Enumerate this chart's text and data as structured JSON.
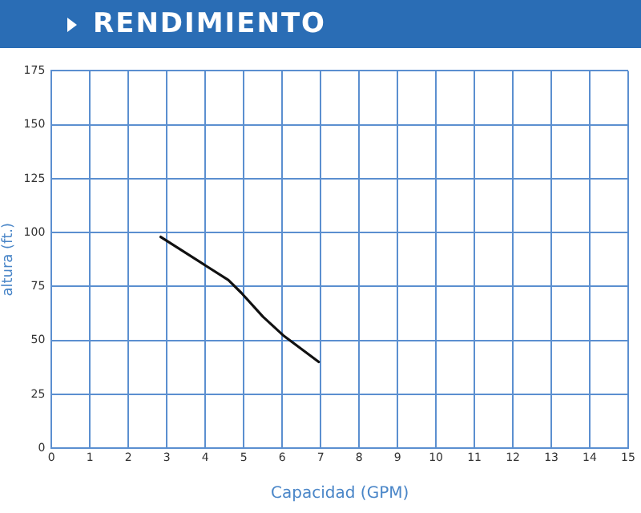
{
  "chart_data": {
    "type": "line",
    "title": "RENDIMIENTO",
    "xlabel": "Capacidad (GPM)",
    "ylabel": "altura (ft.)",
    "series": [
      {
        "color": "#111111",
        "x": [
          2.84,
          3.98,
          4.6,
          4.94,
          5.5,
          6.05,
          6.95
        ],
        "values": [
          98,
          85,
          78,
          72,
          61,
          52,
          40
        ]
      }
    ],
    "xlim": [
      0,
      15
    ],
    "xticks": [
      0,
      1,
      2,
      3,
      4,
      5,
      6,
      7,
      8,
      9,
      10,
      11,
      12,
      13,
      14,
      15
    ],
    "ylim": [
      0,
      175
    ],
    "yticks": [
      0,
      25,
      50,
      75,
      100,
      125,
      150,
      175
    ],
    "grid": true,
    "legend": false,
    "marker": "none",
    "line_style": "solid"
  }
}
